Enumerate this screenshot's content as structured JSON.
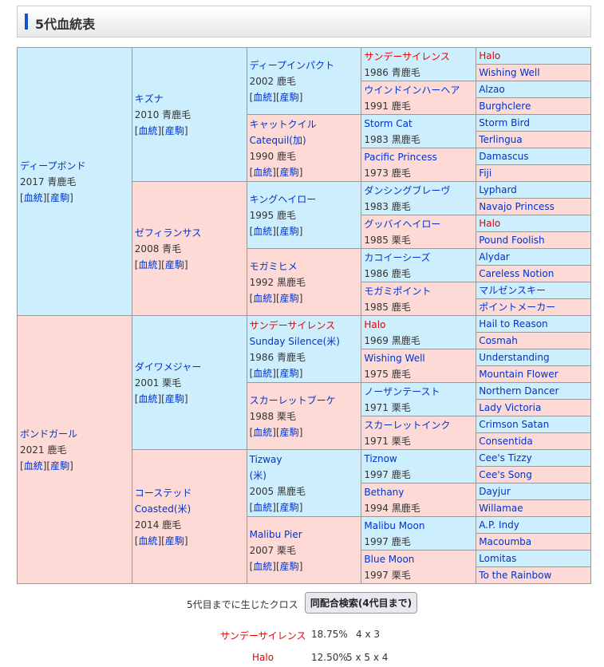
{
  "header": {
    "title": "5代血統表"
  },
  "links": {
    "pedigree": "血統",
    "progeny": "産駒"
  },
  "colors": {
    "male_bg": "#cdeefd",
    "female_bg": "#fddad6",
    "link": "#0033cc",
    "cross": "#e60000"
  },
  "gen1": [
    {
      "name": "ディープボンド",
      "info": "2017 青鹿毛",
      "links": true
    },
    {
      "name": "ボンドガール",
      "info": "2021 鹿毛",
      "links": true
    }
  ],
  "gen2": [
    {
      "name": "キズナ",
      "info": "2010 青鹿毛",
      "links": true
    },
    {
      "name": "ゼフィランサス",
      "info": "2008 青毛",
      "links": true
    },
    {
      "name": "ダイワメジャー",
      "info": "2001 栗毛",
      "links": true
    },
    {
      "name": "コーステッド",
      "en": "Coasted(米)",
      "info": "2014 鹿毛",
      "links": true
    }
  ],
  "gen3": [
    {
      "name": "ディープインパクト",
      "info": "2002 鹿毛",
      "links": true
    },
    {
      "name": "キャットクイル",
      "en": "Catequil(加)",
      "info": "1990 鹿毛",
      "links": true
    },
    {
      "name": "キングヘイロー",
      "info": "1995 鹿毛",
      "links": true
    },
    {
      "name": "モガミヒメ",
      "info": "1992 黒鹿毛",
      "links": true
    },
    {
      "name": "サンデーサイレンス",
      "red": true,
      "en": "Sunday Silence(米)",
      "info": "1986 青鹿毛",
      "links": true
    },
    {
      "name": "スカーレットブーケ",
      "info": "1988 栗毛",
      "links": true
    },
    {
      "name": "Tizway",
      "en": "(米)",
      "info": "2005 黒鹿毛",
      "links": true
    },
    {
      "name": "Malibu Pier",
      "info": "2007 栗毛",
      "links": true
    }
  ],
  "gen4": [
    {
      "name": "サンデーサイレンス",
      "red": true,
      "info": "1986 青鹿毛"
    },
    {
      "name": "ウインドインハーヘア",
      "info": "1991 鹿毛"
    },
    {
      "name": "Storm Cat",
      "info": "1983 黒鹿毛"
    },
    {
      "name": "Pacific Princess",
      "info": "1973 鹿毛"
    },
    {
      "name": "ダンシングブレーヴ",
      "info": "1983 鹿毛"
    },
    {
      "name": "グッバイヘイロー",
      "info": "1985 栗毛"
    },
    {
      "name": "カコイーシーズ",
      "info": "1986 鹿毛"
    },
    {
      "name": "モガミポイント",
      "info": "1985 鹿毛"
    },
    {
      "name": "Halo",
      "red": true,
      "info": "1969 黒鹿毛"
    },
    {
      "name": "Wishing Well",
      "info": "1975 鹿毛"
    },
    {
      "name": "ノーザンテースト",
      "info": "1971 栗毛"
    },
    {
      "name": "スカーレットインク",
      "info": "1971 栗毛"
    },
    {
      "name": "Tiznow",
      "info": "1997 鹿毛"
    },
    {
      "name": "Bethany",
      "info": "1994 黒鹿毛"
    },
    {
      "name": "Malibu Moon",
      "info": "1997 鹿毛"
    },
    {
      "name": "Blue Moon",
      "info": "1997 栗毛"
    }
  ],
  "gen5": [
    {
      "name": "Halo",
      "red": true
    },
    {
      "name": "Wishing Well"
    },
    {
      "name": "Alzao"
    },
    {
      "name": "Burghclere"
    },
    {
      "name": "Storm Bird"
    },
    {
      "name": "Terlingua"
    },
    {
      "name": "Damascus"
    },
    {
      "name": "Fiji"
    },
    {
      "name": "Lyphard"
    },
    {
      "name": "Navajo Princess"
    },
    {
      "name": "Halo",
      "red": true
    },
    {
      "name": "Pound Foolish"
    },
    {
      "name": "Alydar"
    },
    {
      "name": "Careless Notion"
    },
    {
      "name": "マルゼンスキー"
    },
    {
      "name": "ポイントメーカー"
    },
    {
      "name": "Hail to Reason"
    },
    {
      "name": "Cosmah"
    },
    {
      "name": "Understanding"
    },
    {
      "name": "Mountain Flower"
    },
    {
      "name": "Northern Dancer"
    },
    {
      "name": "Lady Victoria"
    },
    {
      "name": "Crimson Satan"
    },
    {
      "name": "Consentida"
    },
    {
      "name": "Cee's Tizzy"
    },
    {
      "name": "Cee's Song"
    },
    {
      "name": "Dayjur"
    },
    {
      "name": "Willamae"
    },
    {
      "name": "A.P. Indy"
    },
    {
      "name": "Macoumba"
    },
    {
      "name": "Lomitas"
    },
    {
      "name": "To the Rainbow"
    }
  ],
  "footer": {
    "cross_label": "5代目までに生じたクロス",
    "search_button": "同配合検索(4代目まで)",
    "crosses": [
      {
        "name": "サンデーサイレンス",
        "percent": "18.75%",
        "pattern": "4 x 3"
      },
      {
        "name": "Halo",
        "percent": "12.50%",
        "pattern": "5 x 5 x 4"
      }
    ]
  }
}
